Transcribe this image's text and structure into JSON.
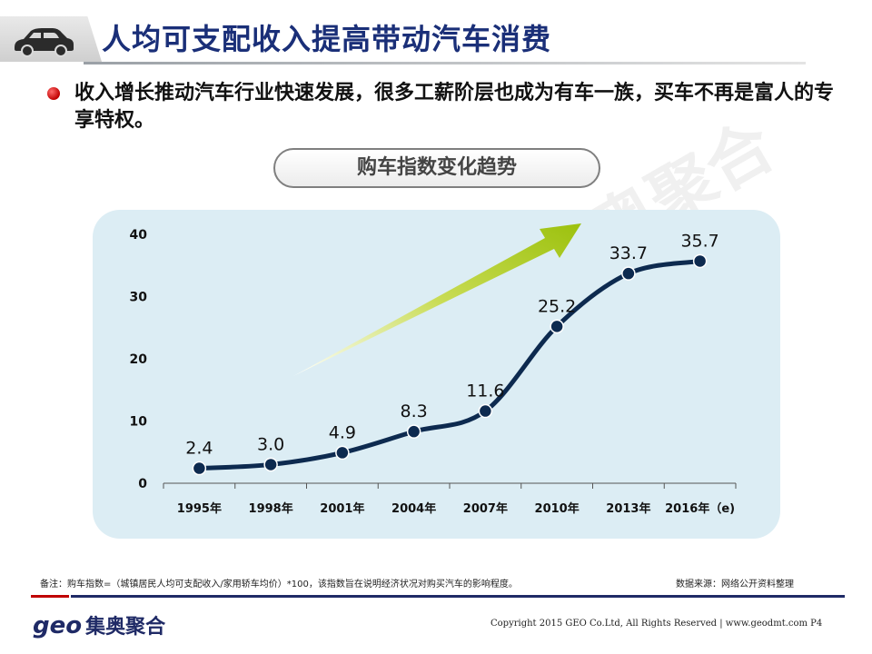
{
  "header": {
    "title": "人均可支配收入提高带动汽车消费",
    "icon": "car-icon"
  },
  "bullet": {
    "text": "收入增长推动汽车行业快速发展，很多工薪阶层也成为有车一族，买车不再是富人的专享特权。"
  },
  "watermark": "奥聚合",
  "chart_data": {
    "type": "line",
    "title": "购车指数变化趋势",
    "categories": [
      "1995年",
      "1998年",
      "2001年",
      "2004年",
      "2007年",
      "2010年",
      "2013年",
      "2016年（e)"
    ],
    "values": [
      2.4,
      3.0,
      4.9,
      8.3,
      11.6,
      25.2,
      33.7,
      35.7
    ],
    "data_labels": [
      "2.4",
      "3.0",
      "4.9",
      "8.3",
      "11.6",
      "25.2",
      "33.7",
      "35.7"
    ],
    "yticks": [
      0,
      10,
      20,
      30,
      40
    ],
    "ylim": [
      0,
      40
    ],
    "xlabel": "",
    "ylabel": "",
    "grid": false,
    "line_color": "#0d2a4f",
    "arrow_color": "#a9c81a"
  },
  "footer": {
    "note": "备注：购车指数=（城镇居民人均可支配收入/家用轿车均价）*100，该指数旨在说明经济状况对购买汽车的影响程度。",
    "source": "数据来源：网络公开资料整理",
    "logo_geo": "geo",
    "logo_cn": "集奥聚合",
    "copyright": "Copyright 2015 GEO Co.Ltd, All Rights Reserved   |   www.geodmt.com P4"
  }
}
